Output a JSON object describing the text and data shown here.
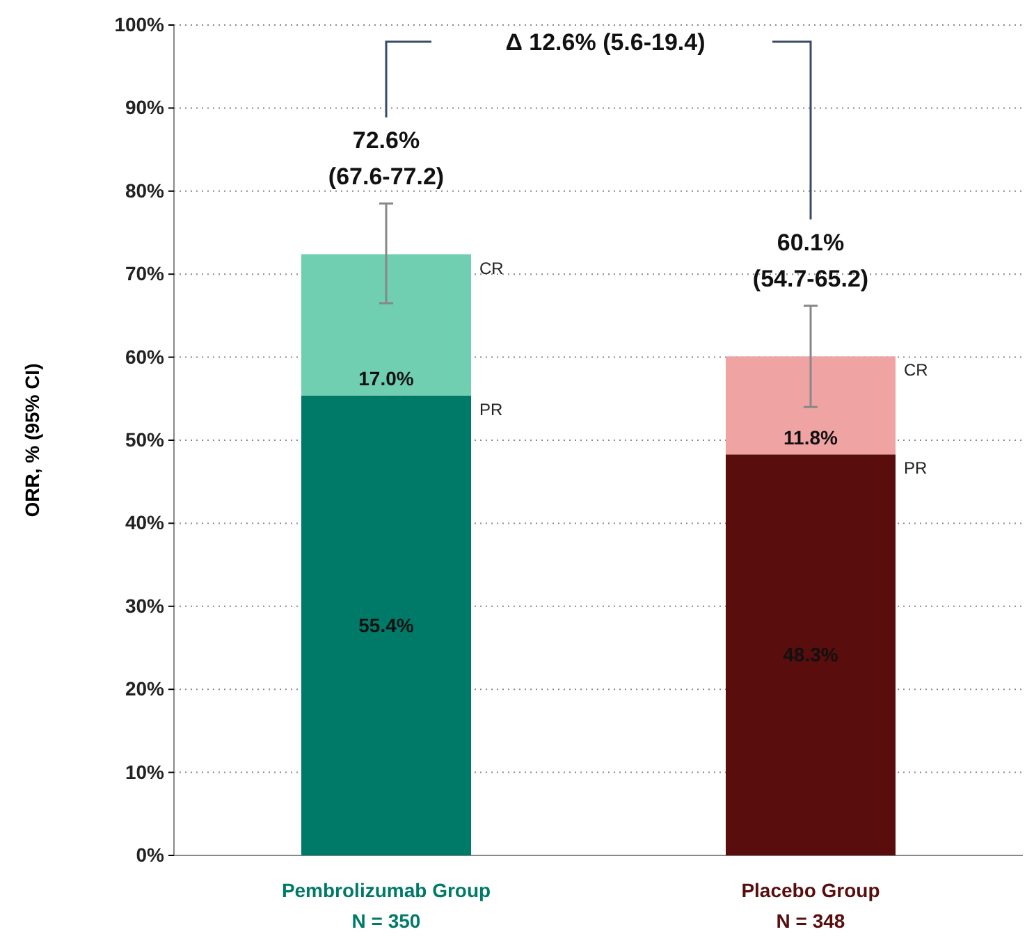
{
  "chart_data": {
    "type": "bar",
    "stacked": true,
    "ylabel": "ORR, % (95% CI)",
    "categories": [
      "Pembrolizumab Group\nN = 350",
      "Placebo Group\nN = 348"
    ],
    "series": [
      {
        "name": "PR",
        "values": [
          55.4,
          48.3
        ],
        "colors": [
          "#007a68",
          "#5a0d0d"
        ],
        "value_labels": [
          "55.4%",
          "48.3%"
        ]
      },
      {
        "name": "CR",
        "values": [
          17.0,
          11.8
        ],
        "colors": [
          "#6fcfb0",
          "#f0a3a3"
        ],
        "value_labels": [
          "17.0%",
          "11.8%"
        ],
        "errors": [
          [
            66.5,
            78.5
          ],
          [
            54,
            66.2
          ]
        ]
      }
    ],
    "totals": [
      "72.6%\n(67.6-77.2)",
      "60.1%\n(54.7-65.2)"
    ],
    "annotations": [
      "Δ 12.6% (5.6-19.4)"
    ],
    "ylim": [
      0,
      100
    ],
    "yticks": [
      {
        "value": 0,
        "label": "0%"
      },
      {
        "value": 10,
        "label": "10%"
      },
      {
        "value": 20,
        "label": "20%"
      },
      {
        "value": 30,
        "label": "30%"
      },
      {
        "value": 40,
        "label": "40%"
      },
      {
        "value": 50,
        "label": "50%"
      },
      {
        "value": 60,
        "label": "60%"
      },
      {
        "value": 70,
        "label": "70%"
      },
      {
        "value": 80,
        "label": "80%"
      },
      {
        "value": 90,
        "label": "90%"
      },
      {
        "value": 100,
        "label": "100%"
      }
    ],
    "grid": "y"
  }
}
